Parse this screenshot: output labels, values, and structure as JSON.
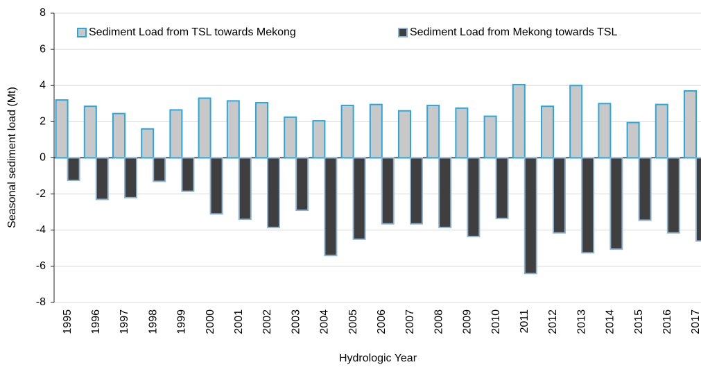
{
  "chart_data": {
    "type": "bar",
    "x_label": "Hydrologic Year",
    "y_label": "Seasonal sediment load (Mt)",
    "categories": [
      "1995",
      "1996",
      "1997",
      "1998",
      "1999",
      "2000",
      "2001",
      "2002",
      "2003",
      "2004",
      "2005",
      "2006",
      "2007",
      "2008",
      "2009",
      "2010",
      "2011",
      "2012",
      "2013",
      "2014",
      "2015",
      "2016",
      "2017"
    ],
    "series": [
      {
        "name": "Sediment Load from TSL towards Mekong",
        "color": "#c8c8c8",
        "edge_color": "#2aa7de",
        "values": [
          3.2,
          2.85,
          2.45,
          1.6,
          2.65,
          3.3,
          3.15,
          3.05,
          2.25,
          2.05,
          2.9,
          2.95,
          2.6,
          2.9,
          2.75,
          2.3,
          4.05,
          2.85,
          4.0,
          3.0,
          1.95,
          2.95,
          3.7
        ]
      },
      {
        "name": "Sediment Load from Mekong towards TSL",
        "color": "#3f3f3f",
        "edge_color": "#8fb2cf",
        "values": [
          -1.25,
          -2.3,
          -2.2,
          -1.3,
          -1.85,
          -3.1,
          -3.4,
          -3.85,
          -2.9,
          -5.4,
          -4.5,
          -3.65,
          -3.65,
          -3.85,
          -4.35,
          -3.35,
          -6.4,
          -4.15,
          -5.25,
          -5.05,
          -3.45,
          -4.15,
          -4.6
        ]
      }
    ],
    "ylim": [
      -8,
      8
    ],
    "yticks": [
      -8,
      -6,
      -4,
      -2,
      0,
      2,
      4,
      6,
      8
    ],
    "grid": true,
    "legend": "top"
  }
}
